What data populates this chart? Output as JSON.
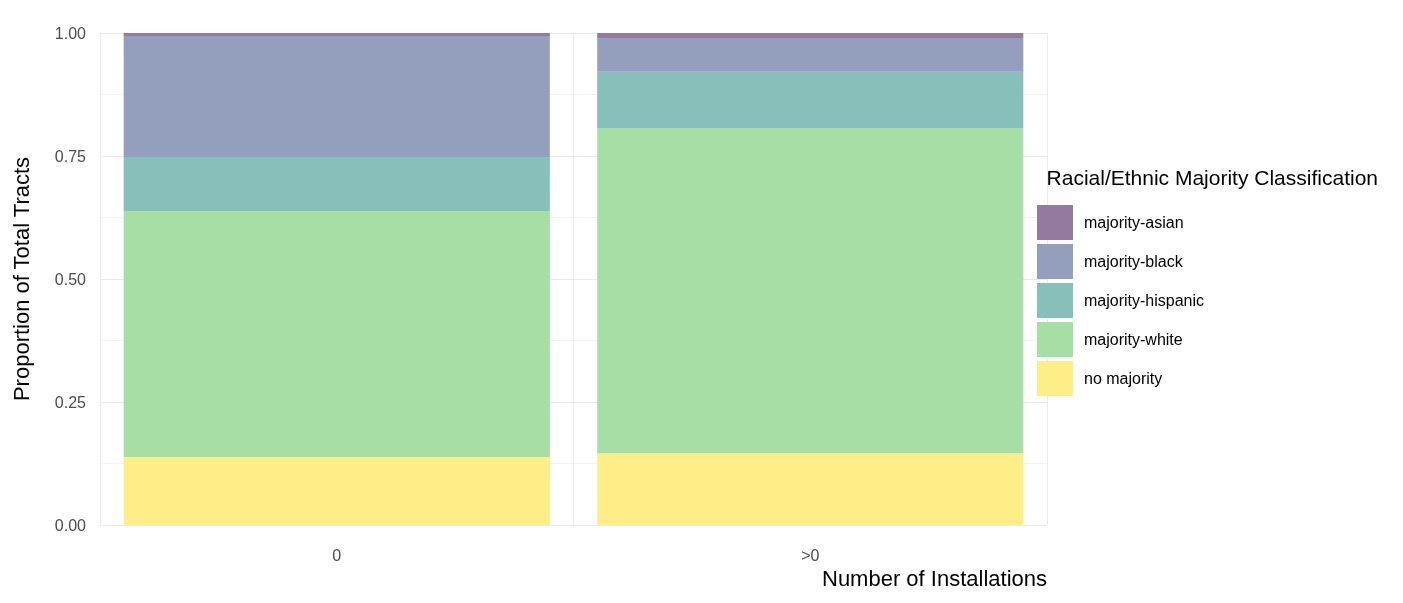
{
  "chart_data": {
    "type": "bar",
    "stacked": true,
    "xlabel": "Number of Installations",
    "ylabel": "Proportion of Total Tracts",
    "legend_title": "Racial/Ethnic Majority Classification",
    "legend": "right",
    "grid": true,
    "categories": [
      "0",
      ">0"
    ],
    "ylim": [
      0,
      1
    ],
    "yticks": [
      {
        "value": 0,
        "label": "0.00"
      },
      {
        "value": 0.25,
        "label": "0.25"
      },
      {
        "value": 0.5,
        "label": "0.50"
      },
      {
        "value": 0.75,
        "label": "0.75"
      },
      {
        "value": 1,
        "label": "1.00"
      }
    ],
    "series": [
      {
        "name": "no majority",
        "color": "#feee88",
        "values": [
          0.138,
          0.146
        ]
      },
      {
        "name": "majority-white",
        "color": "#a6dea5",
        "values": [
          0.5,
          0.661
        ]
      },
      {
        "name": "majority-hispanic",
        "color": "#87bfbb",
        "values": [
          0.11,
          0.114
        ]
      },
      {
        "name": "majority-black",
        "color": "#949fbd",
        "values": [
          0.246,
          0.069
        ]
      },
      {
        "name": "majority-asian",
        "color": "#957aa0",
        "values": [
          0.006,
          0.01
        ]
      }
    ]
  }
}
